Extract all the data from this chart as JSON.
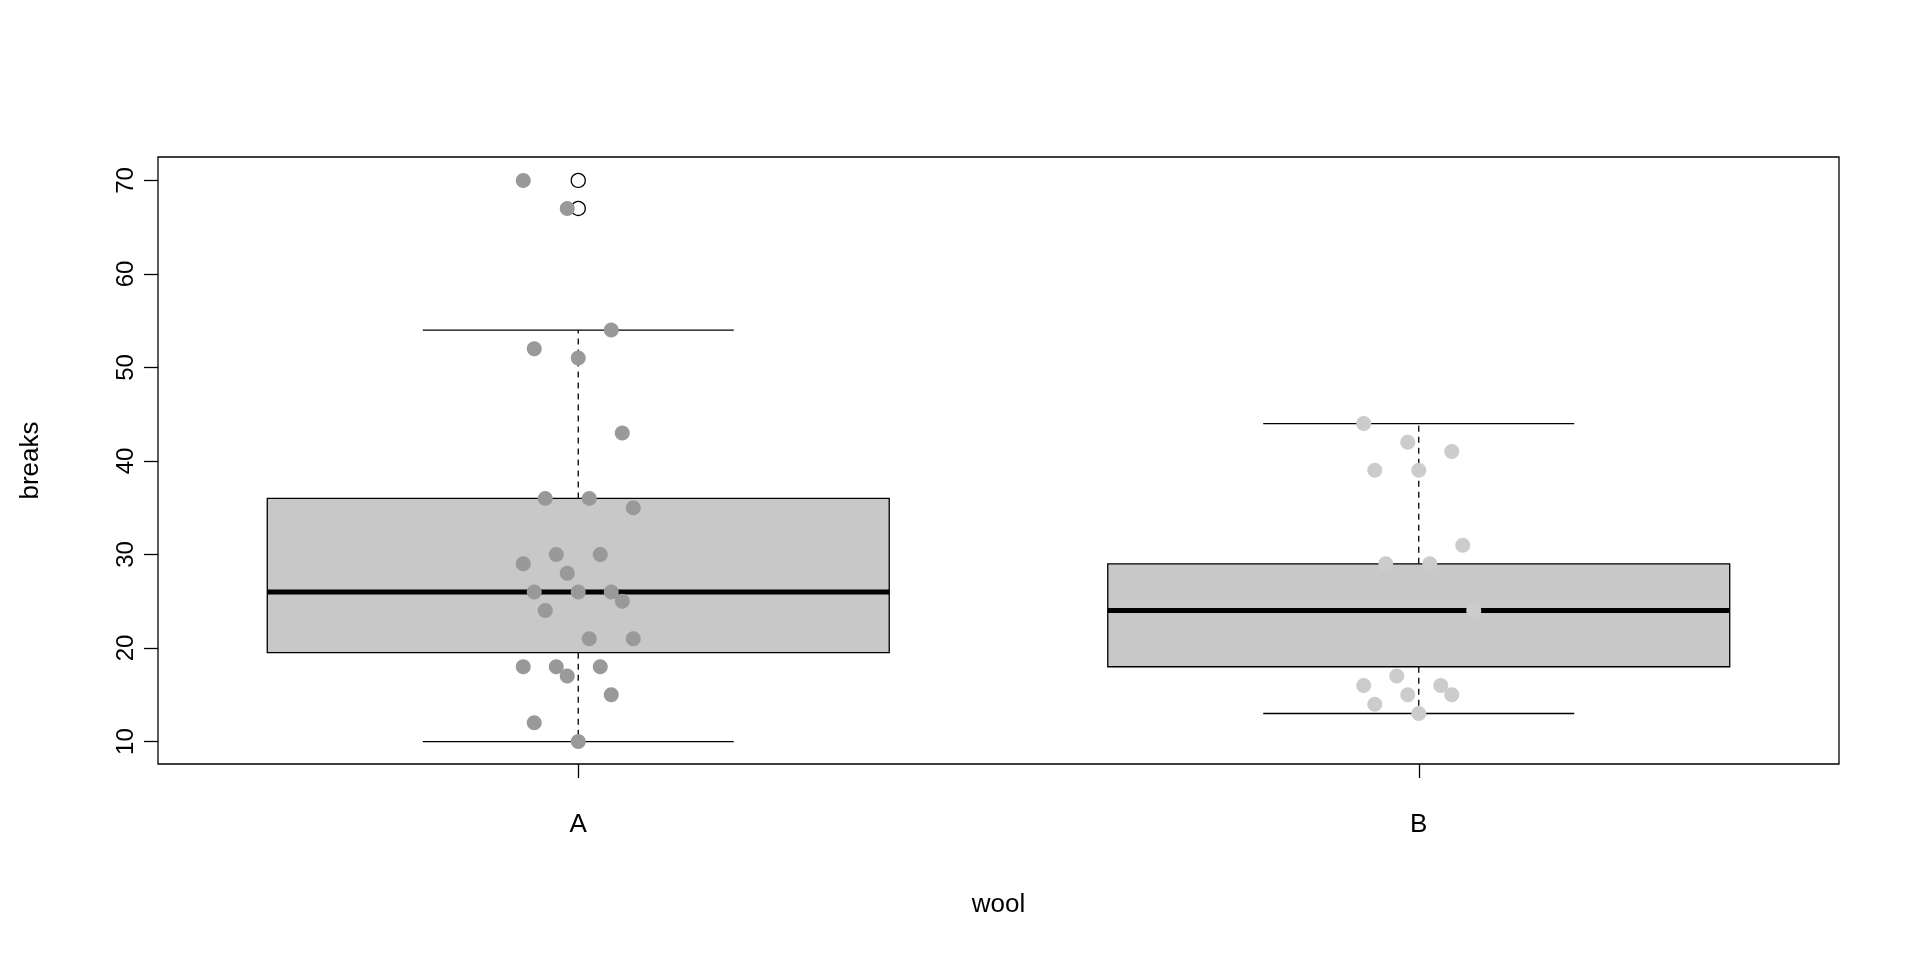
{
  "chart_data": {
    "type": "box",
    "xlabel": "wool",
    "ylabel": "breaks",
    "categories": [
      "A",
      "B"
    ],
    "ylim": [
      7.6,
      72.5
    ],
    "yticks": [
      10,
      20,
      30,
      40,
      50,
      60,
      70
    ],
    "grid": false,
    "marker": "circle",
    "series": [
      {
        "color": "#c8c8c8",
        "boxes": [
          {
            "low": 10,
            "q1": 19.5,
            "median": 26,
            "q3": 36,
            "high": 54,
            "outliers": [
              67,
              70
            ]
          },
          {
            "low": 13,
            "q1": 18,
            "median": 24,
            "q3": 29,
            "high": 44
          }
        ]
      },
      {
        "type": "scatter",
        "color": "#999999",
        "x": [
          "A",
          "A",
          "A",
          "A",
          "A",
          "A",
          "A",
          "A",
          "A",
          "A",
          "A",
          "A",
          "A",
          "A",
          "A",
          "A",
          "A",
          "A",
          "A",
          "A",
          "A",
          "A",
          "A",
          "A",
          "A",
          "A",
          "A"
        ],
        "values": [
          70,
          67,
          54,
          52,
          51,
          43,
          36,
          36,
          35,
          30,
          30,
          29,
          28,
          26,
          26,
          26,
          25,
          24,
          21,
          21,
          18,
          18,
          18,
          17,
          15,
          12,
          10
        ]
      },
      {
        "type": "scatter",
        "color": "#cccccc",
        "x": [
          "B",
          "B",
          "B",
          "B",
          "B",
          "B",
          "B",
          "B",
          "B",
          "B",
          "B",
          "B",
          "B",
          "B",
          "B",
          "B"
        ],
        "values": [
          44,
          42,
          41,
          39,
          39,
          31,
          29,
          29,
          24,
          17,
          16,
          16,
          15,
          15,
          14,
          13
        ]
      }
    ]
  }
}
